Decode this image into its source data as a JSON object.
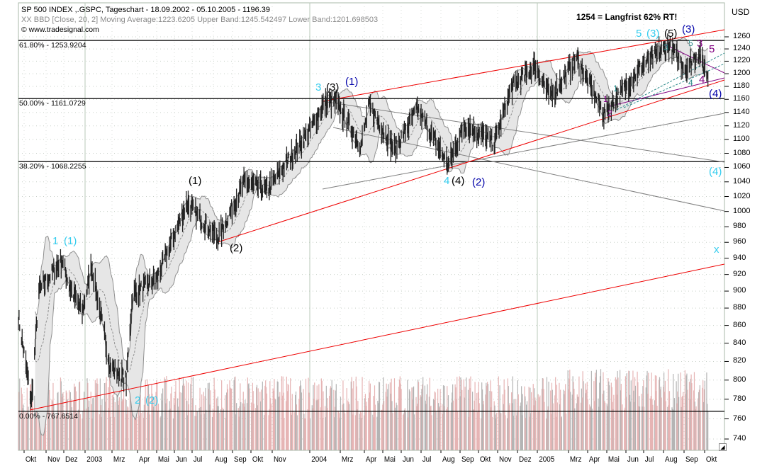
{
  "header": {
    "line1": "SP 500 INDEX ,.GSPC, Tageschart - 18.09.2002 - 05.10.2005 - 1196.39",
    "line2": "XX BBD [Close, 20, 2] Moving Average:1223.6205 Upper Band:1245.542497 Lower Band:1201.698503",
    "line3": "© www.tradesignal.com"
  },
  "note": "1254 = Langfrist 62% RT!",
  "currency": "USD",
  "colors": {
    "price": "#222222",
    "band_fill": "#e6e6e6",
    "band_line": "#909090",
    "trend_red": "#ee0000",
    "fib": "#000000",
    "volume": "#e6b4b4",
    "volume_alt": "#b4b4b4",
    "cyan": "#33ccee",
    "darkblue": "#0000aa",
    "purple": "#800080",
    "teal": "#2a8a8a"
  },
  "chart_data": {
    "type": "line",
    "title": "SP 500 INDEX ,.GSPC, Tageschart",
    "ylabel": "USD",
    "yscale": "log",
    "ylim": [
      735,
      1275
    ],
    "y_ticks": [
      "1260",
      "1240",
      "1220",
      "1200",
      "1180",
      "1160",
      "1140",
      "1120",
      "1100",
      "1080",
      "1060",
      "1040",
      "1020",
      "1000",
      "980",
      "960",
      "940",
      "920",
      "900",
      "880",
      "860",
      "840",
      "820",
      "800",
      "780",
      "760",
      "740"
    ],
    "x_ticks": [
      "Okt",
      "Nov",
      "Dez",
      "2003",
      "Mrz",
      "Apr",
      "Mai",
      "Jun",
      "Jul",
      "Aug",
      "Sep",
      "Okt",
      "Nov",
      "2004",
      "Mrz",
      "Apr",
      "Mai",
      "Jun",
      "Jul",
      "Aug",
      "Sep",
      "Okt",
      "Nov",
      "Dez",
      "2005",
      "Mrz",
      "Apr",
      "Mai",
      "Jun",
      "Jul",
      "Aug",
      "Sep",
      "Okt"
    ],
    "key_closes": [
      [
        "2002-09-18",
        870
      ],
      [
        "2002-10-09",
        777
      ],
      [
        "2002-10-21",
        900
      ],
      [
        "2002-11-27",
        938
      ],
      [
        "2002-12-10",
        905
      ],
      [
        "2002-12-30",
        875
      ],
      [
        "2003-01-14",
        930
      ],
      [
        "2003-02-13",
        815
      ],
      [
        "2003-03-11",
        800
      ],
      [
        "2003-03-21",
        895
      ],
      [
        "2003-04-30",
        916
      ],
      [
        "2003-06-17",
        1011
      ],
      [
        "2003-08-06",
        965
      ],
      [
        "2003-09-18",
        1040
      ],
      [
        "2003-10-24",
        1028
      ],
      [
        "2003-12-31",
        1112
      ],
      [
        "2004-01-26",
        1155
      ],
      [
        "2004-02-11",
        1157
      ],
      [
        "2004-03-24",
        1091
      ],
      [
        "2004-04-06",
        1150
      ],
      [
        "2004-05-17",
        1085
      ],
      [
        "2004-06-23",
        1145
      ],
      [
        "2004-08-12",
        1063
      ],
      [
        "2004-09-07",
        1122
      ],
      [
        "2004-10-25",
        1095
      ],
      [
        "2004-11-22",
        1178
      ],
      [
        "2004-12-30",
        1213
      ],
      [
        "2005-01-24",
        1163
      ],
      [
        "2005-03-07",
        1225
      ],
      [
        "2005-04-20",
        1138
      ],
      [
        "2005-06-23",
        1215
      ],
      [
        "2005-08-03",
        1245
      ],
      [
        "2005-08-30",
        1208
      ],
      [
        "2005-09-20",
        1233
      ],
      [
        "2005-10-05",
        1196
      ]
    ],
    "fibonacci": [
      {
        "label": "61.80% - 1253.9204",
        "value": 1253.9204
      },
      {
        "label": "50.00% - 1161.0729",
        "value": 1161.0729
      },
      {
        "label": "38.20% - 1068.2255",
        "value": 1068.2255
      },
      {
        "label": "0.00% - 767.6514",
        "value": 767.6514
      }
    ],
    "bollinger": {
      "source": "Close",
      "period": 20,
      "stddev": 2,
      "moving_average": 1223.6205,
      "upper_band": 1245.542497,
      "lower_band": 1201.698503
    },
    "last_close": 1196.39,
    "wave_labels": [
      {
        "text": "1",
        "color": "cyan"
      },
      {
        "text": "(1)",
        "color": "cyan"
      },
      {
        "text": "2",
        "color": "cyan"
      },
      {
        "text": "(2)",
        "color": "cyan"
      },
      {
        "text": "(1)",
        "color": "black"
      },
      {
        "text": "(2)",
        "color": "black"
      },
      {
        "text": "3",
        "color": "cyan"
      },
      {
        "text": "(3)",
        "color": "black"
      },
      {
        "text": "(1)",
        "color": "darkblue"
      },
      {
        "text": "4",
        "color": "cyan"
      },
      {
        "text": "(4)",
        "color": "black"
      },
      {
        "text": "(2)",
        "color": "darkblue"
      },
      {
        "text": "5",
        "color": "cyan"
      },
      {
        "text": "(3)",
        "color": "cyan"
      },
      {
        "text": "(5)",
        "color": "black"
      },
      {
        "text": "(3)",
        "color": "darkblue"
      },
      {
        "text": "5",
        "color": "teal"
      },
      {
        "text": "3",
        "color": "purple"
      },
      {
        "text": "5",
        "color": "purple"
      },
      {
        "text": "4",
        "color": "teal"
      },
      {
        "text": "4",
        "color": "purple"
      },
      {
        "text": "(4)",
        "color": "darkblue"
      },
      {
        "text": "(4)",
        "color": "cyan"
      },
      {
        "text": "x",
        "color": "cyan"
      },
      {
        "text": "1",
        "color": "purple"
      },
      {
        "text": "2",
        "color": "purple"
      },
      {
        "text": "1",
        "color": "teal"
      },
      {
        "text": "3",
        "color": "teal"
      }
    ]
  }
}
